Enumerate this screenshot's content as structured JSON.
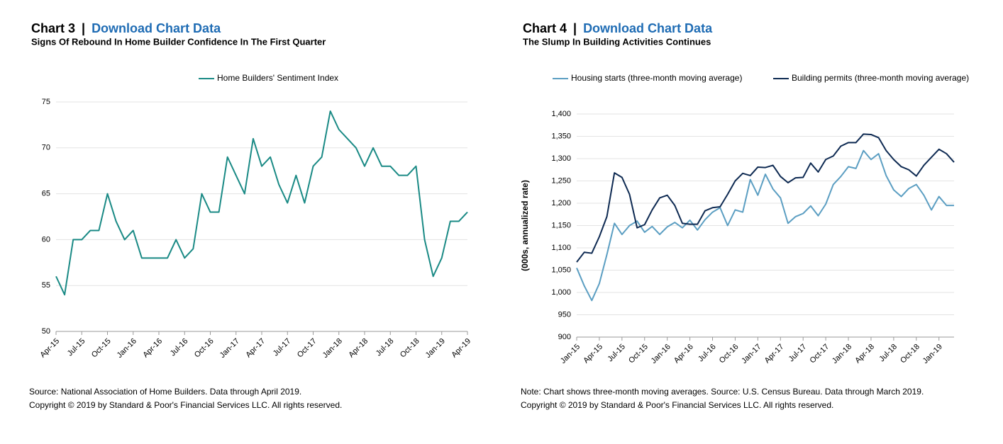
{
  "chart_data": [
    {
      "type": "line",
      "label": "Chart 3",
      "separator": "|",
      "link": "Download Chart Data",
      "title": "Signs Of Rebound In Home Builder Confidence In The First Quarter",
      "categories": [
        "Apr-15",
        null,
        null,
        "Jul-15",
        null,
        null,
        "Oct-15",
        null,
        null,
        "Jan-16",
        null,
        null,
        "Apr-16",
        null,
        null,
        "Jul-16",
        null,
        null,
        "Oct-16",
        null,
        null,
        "Jan-17",
        null,
        null,
        "Apr-17",
        null,
        null,
        "Jul-17",
        null,
        null,
        "Oct-17",
        null,
        null,
        "Jan-18",
        null,
        null,
        "Apr-18",
        null,
        null,
        "Jul-18",
        null,
        null,
        "Oct-18",
        null,
        null,
        "Jan-19",
        null,
        null,
        "Apr-19"
      ],
      "series": [
        {
          "name": "Home Builders' Sentiment Index",
          "color": "#1a8a85",
          "values": [
            56,
            54,
            60,
            60,
            61,
            61,
            65,
            62,
            60,
            61,
            58,
            58,
            58,
            58,
            60,
            58,
            59,
            65,
            63,
            63,
            69,
            67,
            65,
            71,
            68,
            69,
            66,
            64,
            67,
            64,
            68,
            69,
            74,
            72,
            71,
            70,
            68,
            70,
            68,
            68,
            67,
            67,
            68,
            60,
            56,
            58,
            62,
            62,
            63
          ]
        }
      ],
      "ylim": [
        50,
        75
      ],
      "yticks": [
        50,
        55,
        60,
        65,
        70,
        75
      ],
      "grid": true,
      "notes": [
        "Source: National Association of Home Builders. Data through April 2019.",
        "Copyright © 2019 by Standard & Poor's Financial Services LLC. All rights reserved."
      ]
    },
    {
      "type": "line",
      "label": "Chart 4",
      "separator": "|",
      "link": "Download Chart Data",
      "title": "The Slump In Building Activities Continues",
      "ylabel": "(000s, annualized rate)",
      "categories": [
        "Jan-15",
        null,
        null,
        "Apr-15",
        null,
        null,
        "Jul-15",
        null,
        null,
        "Oct-15",
        null,
        null,
        "Jan-16",
        null,
        null,
        "Apr-16",
        null,
        null,
        "Jul-16",
        null,
        null,
        "Oct-16",
        null,
        null,
        "Jan-17",
        null,
        null,
        "Apr-17",
        null,
        null,
        "Jul-17",
        null,
        null,
        "Oct-17",
        null,
        null,
        "Jan-18",
        null,
        null,
        "Apr-18",
        null,
        null,
        "Jul-18",
        null,
        null,
        "Oct-18",
        null,
        null,
        "Jan-19",
        null,
        null
      ],
      "series": [
        {
          "name": "Housing starts (three-month moving average)",
          "color": "#5b9ec2",
          "values": [
            1055,
            1015,
            982,
            1020,
            1085,
            1155,
            1130,
            1150,
            1160,
            1135,
            1148,
            1130,
            1147,
            1157,
            1145,
            1162,
            1140,
            1163,
            1180,
            1190,
            1150,
            1185,
            1180,
            1253,
            1218,
            1265,
            1232,
            1212,
            1155,
            1170,
            1177,
            1194,
            1172,
            1198,
            1242,
            1260,
            1282,
            1278,
            1318,
            1298,
            1311,
            1262,
            1230,
            1215,
            1233,
            1242,
            1218,
            1185,
            1215,
            1195,
            1195
          ]
        },
        {
          "name": "Building permits (three-month moving average)",
          "color": "#0e2a52",
          "values": [
            1068,
            1090,
            1088,
            1125,
            1170,
            1268,
            1258,
            1220,
            1145,
            1152,
            1185,
            1212,
            1218,
            1195,
            1155,
            1153,
            1153,
            1183,
            1190,
            1192,
            1220,
            1250,
            1267,
            1262,
            1281,
            1280,
            1285,
            1260,
            1246,
            1257,
            1258,
            1290,
            1270,
            1298,
            1306,
            1328,
            1336,
            1336,
            1355,
            1354,
            1347,
            1318,
            1298,
            1282,
            1275,
            1261,
            1285,
            1303,
            1321,
            1311,
            1292
          ]
        }
      ],
      "ylim": [
        900,
        1400
      ],
      "yticks": [
        900,
        950,
        {
          "value": 1000,
          "label": "1,000"
        },
        {
          "value": 1050,
          "label": "1,050"
        },
        {
          "value": 1100,
          "label": "1,100"
        },
        {
          "value": 1150,
          "label": "1,150"
        },
        {
          "value": 1200,
          "label": "1,200"
        },
        {
          "value": 1250,
          "label": "1,250"
        },
        {
          "value": 1300,
          "label": "1,300"
        },
        {
          "value": 1350,
          "label": "1,350"
        },
        {
          "value": 1400,
          "label": "1,400"
        }
      ],
      "grid": true,
      "notes": [
        "Note: Chart shows three-month moving averages. Source: U.S. Census Bureau. Data through March 2019.",
        "Copyright © 2019 by Standard & Poor's Financial Services LLC. All rights reserved."
      ]
    }
  ]
}
